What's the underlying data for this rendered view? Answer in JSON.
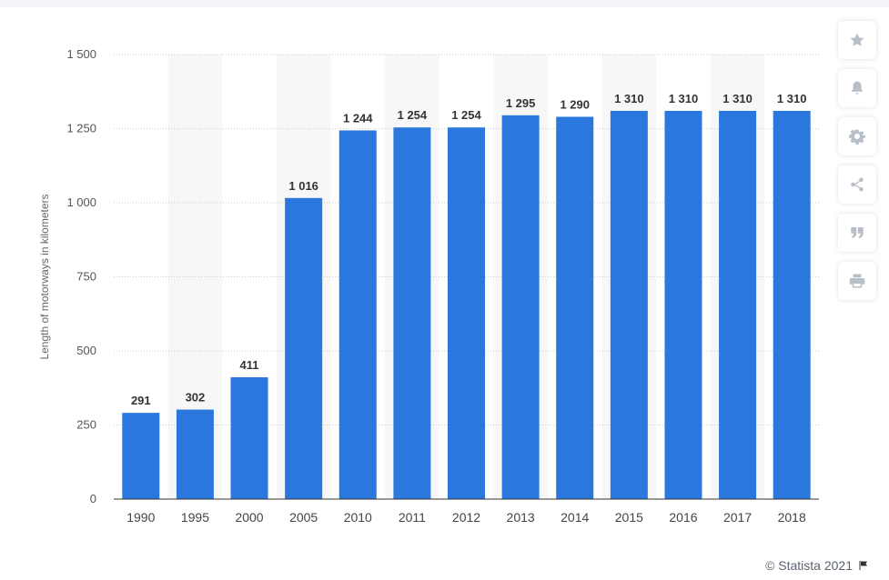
{
  "chart_data": {
    "type": "bar",
    "ylabel": "Length of motorways in kilometers",
    "categories": [
      "1990",
      "1995",
      "2000",
      "2005",
      "2010",
      "2011",
      "2012",
      "2013",
      "2014",
      "2015",
      "2016",
      "2017",
      "2018"
    ],
    "values": [
      291,
      302,
      411,
      1016,
      1244,
      1254,
      1254,
      1295,
      1290,
      1310,
      1310,
      1310,
      1310
    ],
    "value_labels": [
      "291",
      "302",
      "411",
      "1 016",
      "1 244",
      "1 254",
      "1 254",
      "1 295",
      "1 290",
      "1 310",
      "1 310",
      "1 310",
      "1 310"
    ],
    "ylim": [
      0,
      1500
    ],
    "yticks": [
      0,
      250,
      500,
      750,
      1000,
      1250,
      1500
    ],
    "ytick_labels": [
      "0",
      "250",
      "500",
      "750",
      "1 000",
      "1 250",
      "1 500"
    ],
    "grid": true,
    "legend": "none",
    "bar_color": "#2a77dd"
  },
  "sidebar": {
    "buttons": [
      {
        "name": "star-icon"
      },
      {
        "name": "bell-icon"
      },
      {
        "name": "gear-icon"
      },
      {
        "name": "share-icon"
      },
      {
        "name": "quote-icon"
      },
      {
        "name": "print-icon"
      }
    ]
  },
  "footer": {
    "credit": "© Statista 2021",
    "icon": "flag-icon"
  }
}
